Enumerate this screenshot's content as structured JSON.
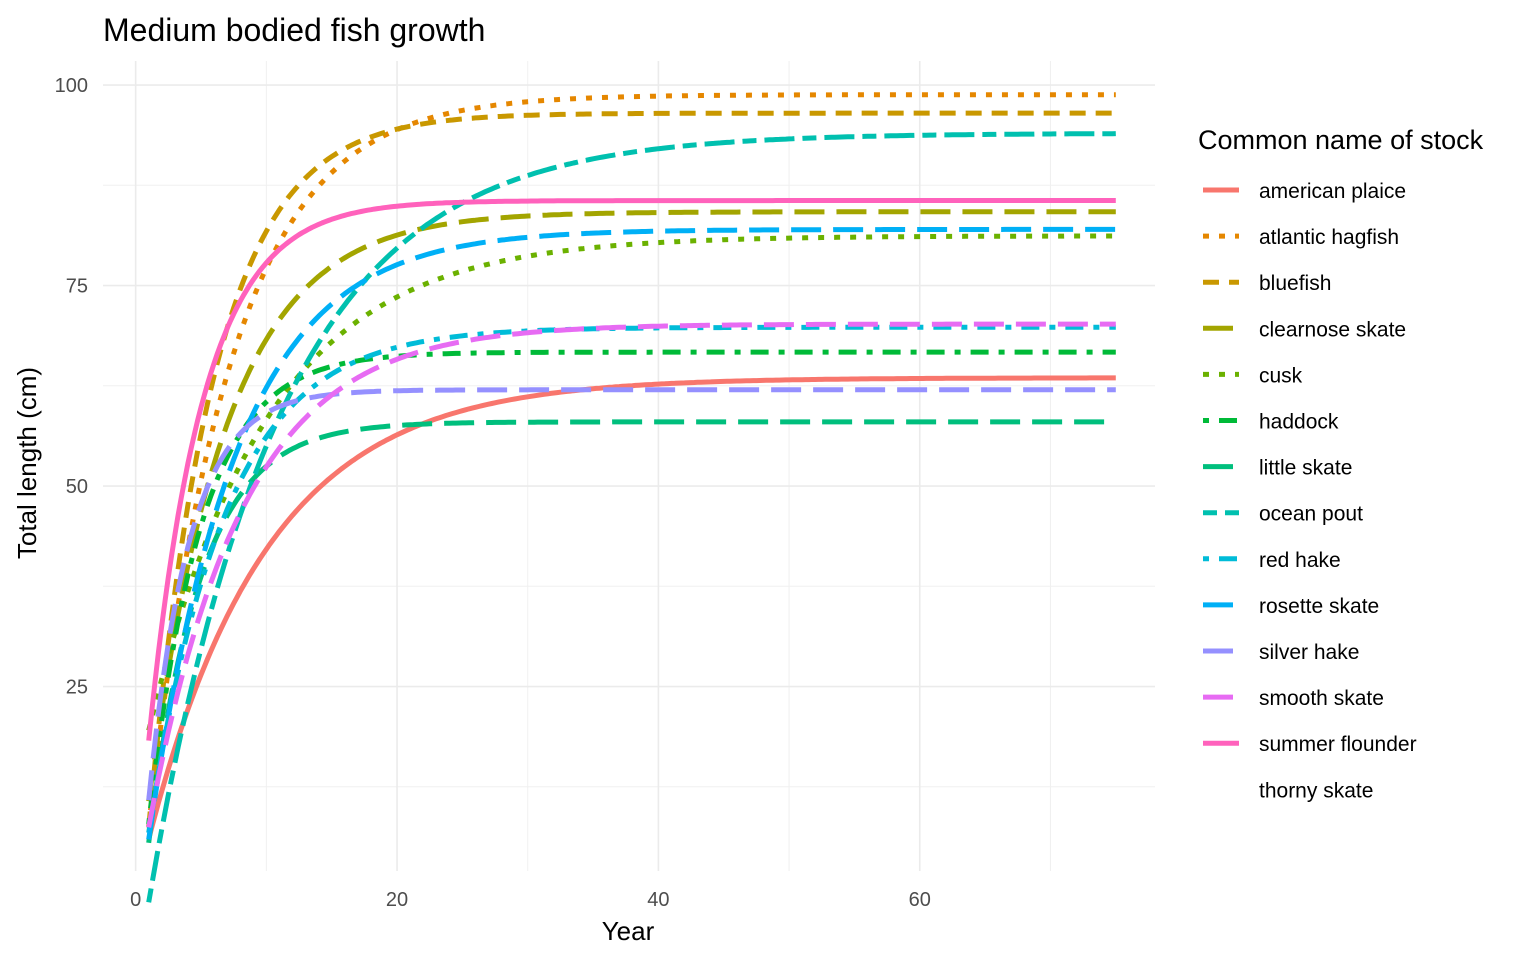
{
  "chart_data": {
    "type": "line",
    "title": "Medium bodied fish growth",
    "xlabel": "Year",
    "ylabel": "Total length (cm)",
    "xlim": [
      -2.5,
      78
    ],
    "ylim": [
      2,
      103
    ],
    "x_ticks": [
      0,
      20,
      40,
      60
    ],
    "y_ticks": [
      25,
      50,
      75,
      100
    ],
    "x_minor_ticks": [
      10,
      30,
      50,
      70
    ],
    "y_minor_ticks": [
      12.5,
      37.5,
      62.5,
      87.5
    ],
    "grid": true,
    "legend_title": "Common name of stock",
    "legend_position": "right",
    "x_range": [
      1,
      75
    ],
    "series": [
      {
        "name": "american plaice",
        "color": "#F8766D",
        "dash": "solid",
        "Linf": 63.5,
        "k": 0.11,
        "t0": 0.1
      },
      {
        "name": "atlantic hagfish",
        "color": "#E58700",
        "dash": "dotted",
        "Linf": 98.8,
        "k": 0.16,
        "t0": 0.5
      },
      {
        "name": "bluefish",
        "color": "#C99800",
        "dash": "dashed",
        "Linf": 96.5,
        "k": 0.2,
        "t0": 0.6
      },
      {
        "name": "clearnose skate",
        "color": "#A3A500",
        "dash": "longdash",
        "Linf": 84.2,
        "k": 0.17,
        "t0": 0.2
      },
      {
        "name": "cusk",
        "color": "#6BB100",
        "dash": "dotted",
        "Linf": 81.2,
        "k": 0.11,
        "t0": -1.5
      },
      {
        "name": "haddock",
        "color": "#00BA38",
        "dash": "dotdash",
        "Linf": 66.7,
        "k": 0.25,
        "t0": 0.5
      },
      {
        "name": "little skate",
        "color": "#00BF7D",
        "dash": "longdash",
        "Linf": 58.0,
        "k": 0.25,
        "t0": 0.6
      },
      {
        "name": "ocean pout",
        "color": "#00C0AF",
        "dash": "twodash",
        "Linf": 94.0,
        "k": 0.1,
        "t0": 1.2
      },
      {
        "name": "red hake",
        "color": "#00BCD8",
        "dash": "dotdash",
        "Linf": 69.8,
        "k": 0.17,
        "t0": 0.4
      },
      {
        "name": "rosette skate",
        "color": "#00B0F6",
        "dash": "longdash",
        "Linf": 82.0,
        "k": 0.15,
        "t0": 0.5
      },
      {
        "name": "silver hake",
        "color": "#9590FF",
        "dash": "longdash",
        "Linf": 62.0,
        "k": 0.32,
        "t0": 0.4
      },
      {
        "name": "smooth skate",
        "color": "#E76BF3",
        "dash": "longdash",
        "Linf": 70.2,
        "k": 0.14,
        "t0": 0.2
      },
      {
        "name": "summer flounder",
        "color": "#FF62BC",
        "dash": "solid",
        "Linf": 85.6,
        "k": 0.24,
        "t0": 0.0
      },
      {
        "name": "thorny skate",
        "color": "#FFFFFF",
        "dash": "solid",
        "Linf": null,
        "k": null,
        "t0": null
      }
    ]
  }
}
